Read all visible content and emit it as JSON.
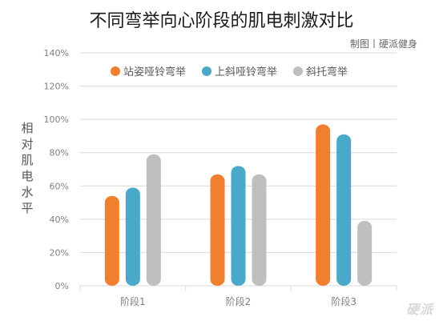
{
  "title": "不同弯举向心阶段的肌电刺激对比",
  "credit": "制图丨硬派健身",
  "watermark": "硬派",
  "colors": {
    "series": [
      "#f08030",
      "#4aa8c8",
      "#bfbfbf"
    ],
    "grid": "#d9d9d9",
    "axis_text": "#7f7f7f"
  },
  "chart_data": {
    "type": "bar",
    "title": "不同弯举向心阶段的肌电刺激对比",
    "ylabel": "相对肌电水平",
    "xlabel": "",
    "categories": [
      "阶段1",
      "阶段2",
      "阶段3"
    ],
    "series": [
      {
        "name": "站姿哑铃弯举",
        "values": [
          54,
          67,
          97
        ]
      },
      {
        "name": "上斜哑铃弯举",
        "values": [
          59,
          72,
          91
        ]
      },
      {
        "name": "斜托弯举",
        "values": [
          79,
          67,
          39
        ]
      }
    ],
    "ylim": [
      0,
      140
    ],
    "yticks": [
      0,
      20,
      40,
      60,
      80,
      100,
      120,
      140
    ],
    "ytick_labels": [
      "0%",
      "20%",
      "40%",
      "60%",
      "80%",
      "100%",
      "120%",
      "140%"
    ],
    "grid": true,
    "legend_position": "top"
  }
}
